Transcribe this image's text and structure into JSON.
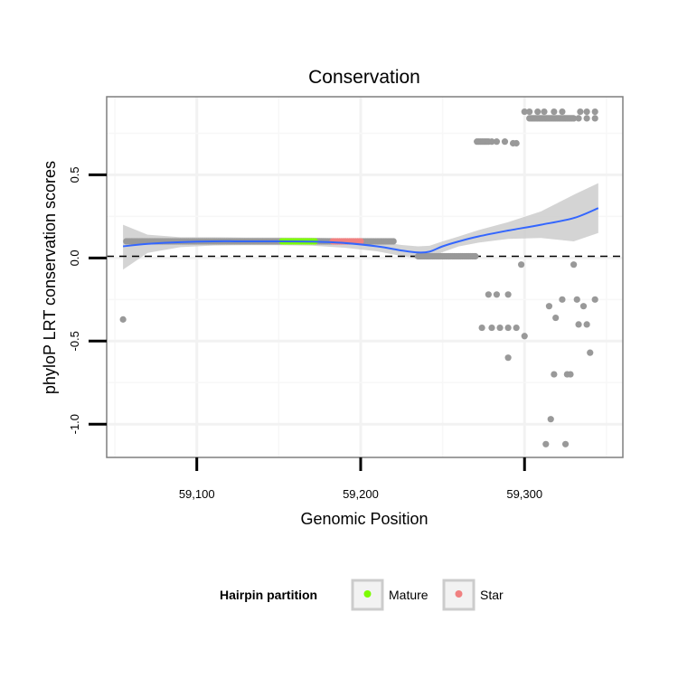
{
  "chart_data": {
    "type": "scatter",
    "title": "Conservation",
    "xlabel": "Genomic Position",
    "ylabel": "phyloP LRT conservation scores",
    "xlim": [
      59045,
      59360
    ],
    "ylim": [
      -1.2,
      0.97
    ],
    "x_ticks": [
      {
        "value": 59100,
        "label": "59,100"
      },
      {
        "value": 59200,
        "label": "59,200"
      },
      {
        "value": 59300,
        "label": "59,300"
      }
    ],
    "y_ticks": [
      {
        "value": 0.5,
        "label": "0.5"
      },
      {
        "value": 0.0,
        "label": "0.0"
      },
      {
        "value": -0.5,
        "label": "-0.5"
      },
      {
        "value": -1.0,
        "label": "-1.0"
      }
    ],
    "grid": true,
    "reference_line": {
      "y": 0.01,
      "style": "dashed"
    },
    "colors": {
      "background_point": "#999999",
      "mature": "#7cfc00",
      "star": "#f08080",
      "smooth_line": "#3366ff",
      "confidence_band": "#cccccc"
    },
    "points_background": {
      "runs": [
        {
          "x_start": 59057,
          "x_end": 59220,
          "step": 1,
          "y": 0.1
        },
        {
          "x_start": 59235,
          "x_end": 59270,
          "step": 1,
          "y": 0.01
        },
        {
          "x_start": 59271,
          "x_end": 59278,
          "step": 1,
          "y": 0.7
        },
        {
          "x_start": 59303,
          "x_end": 59330,
          "step": 1,
          "y": 0.84
        }
      ],
      "points": [
        [
          59055,
          -0.37
        ],
        [
          59280,
          0.7
        ],
        [
          59283,
          0.7
        ],
        [
          59288,
          0.7
        ],
        [
          59293,
          0.69
        ],
        [
          59295,
          0.69
        ],
        [
          59300,
          0.88
        ],
        [
          59303,
          0.88
        ],
        [
          59308,
          0.88
        ],
        [
          59312,
          0.88
        ],
        [
          59318,
          0.88
        ],
        [
          59323,
          0.88
        ],
        [
          59334,
          0.88
        ],
        [
          59338,
          0.88
        ],
        [
          59343,
          0.88
        ],
        [
          59333,
          0.84
        ],
        [
          59338,
          0.84
        ],
        [
          59343,
          0.84
        ],
        [
          59278,
          -0.22
        ],
        [
          59283,
          -0.22
        ],
        [
          59290,
          -0.22
        ],
        [
          59274,
          -0.42
        ],
        [
          59280,
          -0.42
        ],
        [
          59285,
          -0.42
        ],
        [
          59290,
          -0.42
        ],
        [
          59295,
          -0.42
        ],
        [
          59300,
          -0.47
        ],
        [
          59290,
          -0.6
        ],
        [
          59298,
          -0.04
        ],
        [
          59315,
          -0.29
        ],
        [
          59319,
          -0.36
        ],
        [
          59323,
          -0.25
        ],
        [
          59330,
          -0.04
        ],
        [
          59332,
          -0.25
        ],
        [
          59336,
          -0.29
        ],
        [
          59333,
          -0.4
        ],
        [
          59338,
          -0.4
        ],
        [
          59340,
          -0.57
        ],
        [
          59343,
          -0.25
        ],
        [
          59318,
          -0.7
        ],
        [
          59326,
          -0.7
        ],
        [
          59328,
          -0.7
        ],
        [
          59316,
          -0.97
        ],
        [
          59313,
          -1.12
        ],
        [
          59325,
          -1.12
        ]
      ]
    },
    "series": [
      {
        "name": "Mature",
        "x_start": 59152,
        "x_end": 59172,
        "y": 0.1
      },
      {
        "name": "Star",
        "x_start": 59183,
        "x_end": 59200,
        "y": 0.1
      }
    ],
    "smooth_line": {
      "x": [
        59055,
        59070,
        59090,
        59110,
        59130,
        59150,
        59170,
        59190,
        59210,
        59225,
        59235,
        59242,
        59250,
        59260,
        59272,
        59290,
        59310,
        59330,
        59345
      ],
      "y": [
        0.07,
        0.085,
        0.095,
        0.1,
        0.1,
        0.1,
        0.098,
        0.09,
        0.07,
        0.045,
        0.033,
        0.038,
        0.07,
        0.1,
        0.13,
        0.165,
        0.2,
        0.24,
        0.3
      ]
    },
    "confidence_band": {
      "x": [
        59055,
        59070,
        59090,
        59110,
        59130,
        59150,
        59170,
        59190,
        59210,
        59225,
        59235,
        59242,
        59250,
        59260,
        59272,
        59290,
        59310,
        59330,
        59345
      ],
      "upper": [
        0.2,
        0.14,
        0.125,
        0.125,
        0.123,
        0.123,
        0.122,
        0.118,
        0.1,
        0.078,
        0.07,
        0.073,
        0.1,
        0.13,
        0.168,
        0.215,
        0.28,
        0.38,
        0.45
      ],
      "lower": [
        -0.07,
        0.03,
        0.065,
        0.075,
        0.077,
        0.077,
        0.074,
        0.062,
        0.04,
        0.012,
        -0.004,
        0.0,
        0.035,
        0.07,
        0.092,
        0.115,
        0.12,
        0.1,
        0.15
      ]
    }
  },
  "legend": {
    "title": "Hairpin partition",
    "items": [
      {
        "name": "Mature",
        "color": "#7cfc00"
      },
      {
        "name": "Star",
        "color": "#f08080"
      }
    ]
  }
}
